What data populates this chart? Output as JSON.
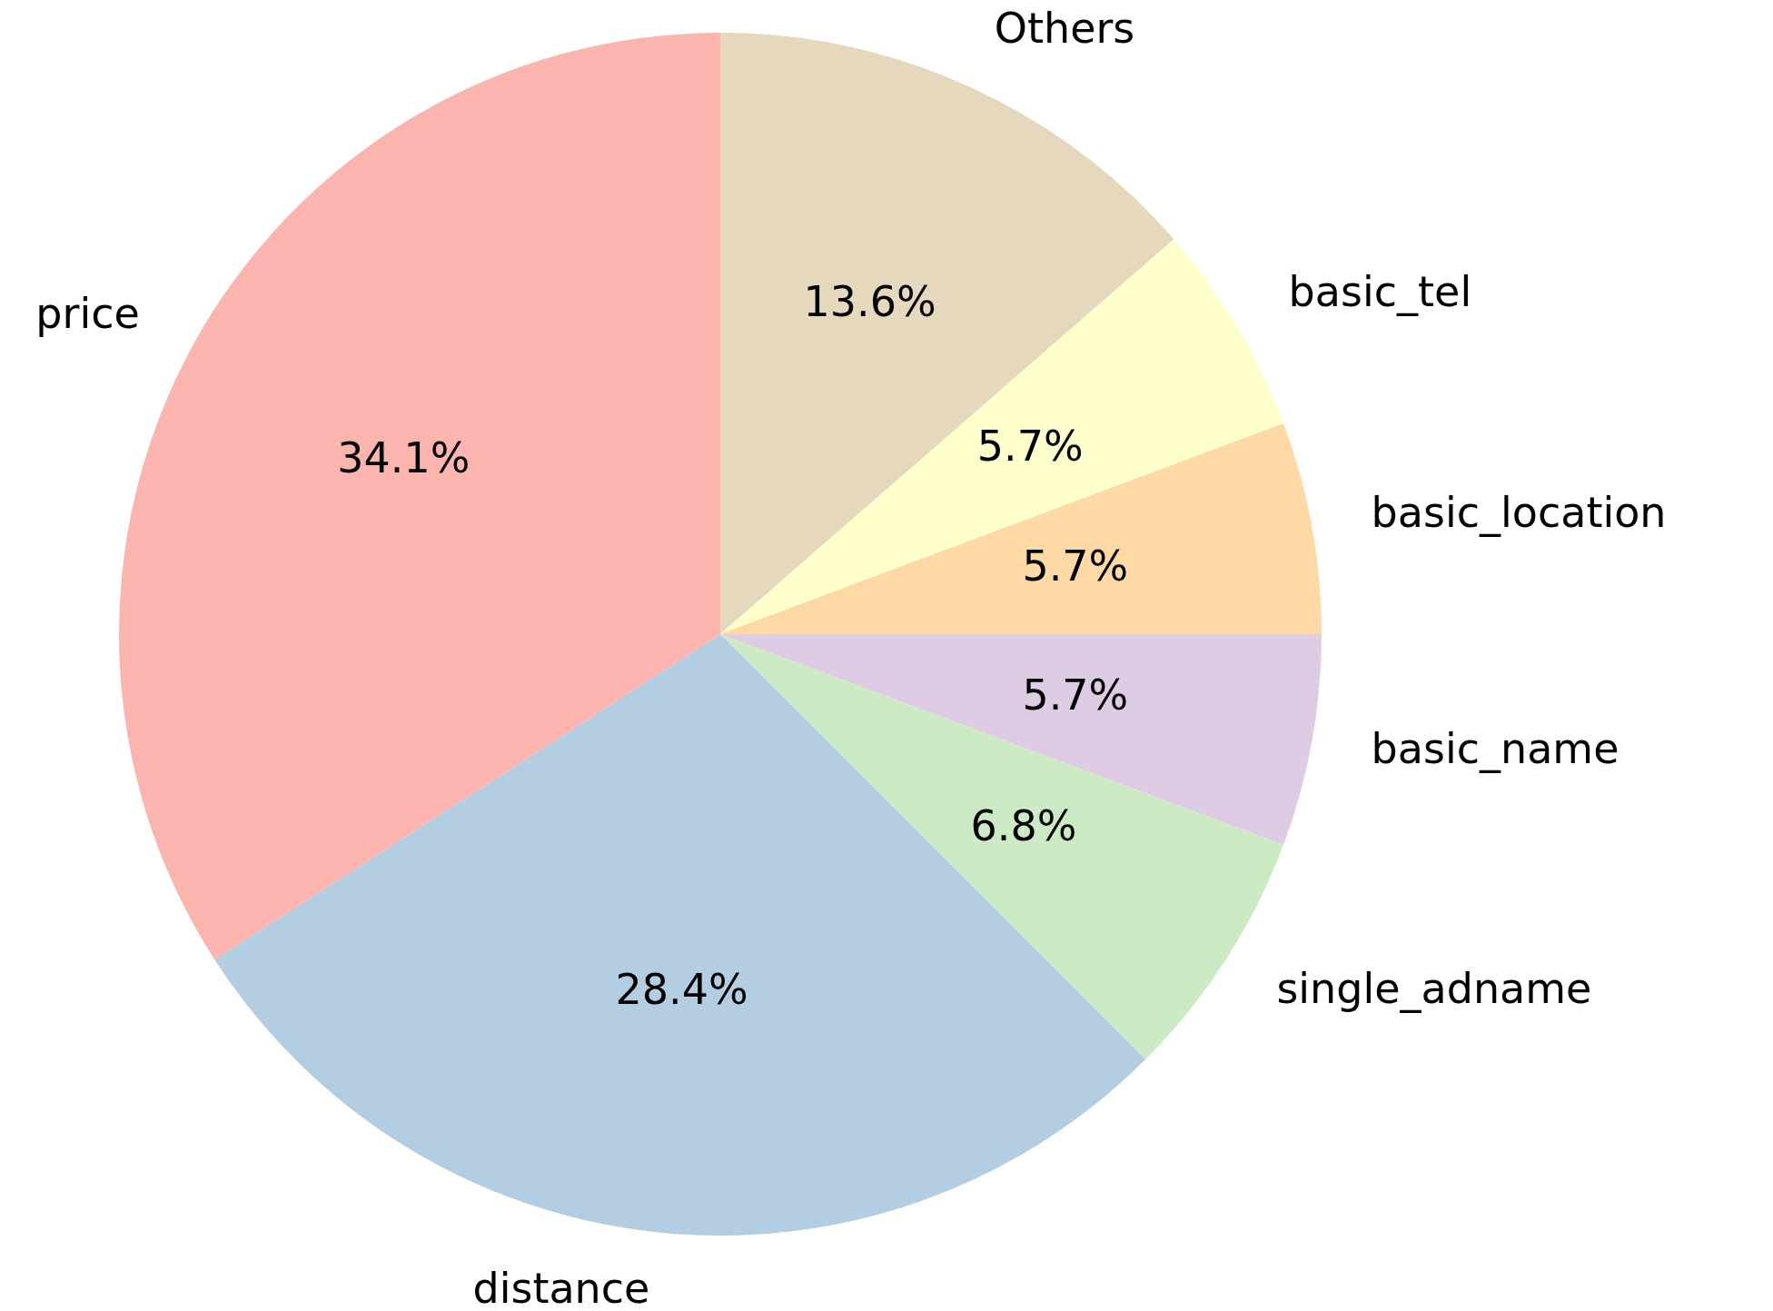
{
  "chart_data": {
    "type": "pie",
    "categories": [
      "Others",
      "basic_tel",
      "basic_location",
      "basic_name",
      "single_adname",
      "distance",
      "price"
    ],
    "values": [
      13.6,
      5.7,
      5.7,
      5.7,
      6.8,
      28.4,
      34.1
    ],
    "colors": [
      "#e5d8bd",
      "#ffffcc",
      "#fed9a6",
      "#decbe4",
      "#ccebc5",
      "#b3cde3",
      "#fbb4ae"
    ],
    "value_labels": [
      "13.6%",
      "5.7%",
      "5.7%",
      "5.7%",
      "6.8%",
      "28.4%",
      "34.1%"
    ],
    "legend": false
  }
}
